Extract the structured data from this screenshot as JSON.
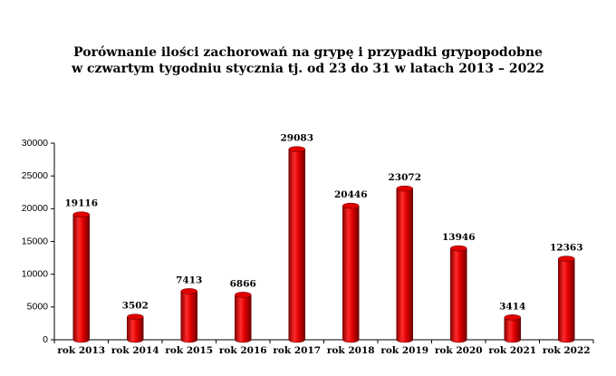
{
  "chart_data": {
    "type": "bar",
    "title_lines": [
      "Porównanie ilości zachorowań na grypę i przypadki grypopodobne",
      "w czwartym tygodniu stycznia tj. od 23 do 31 w latach 2013 – 2022"
    ],
    "categories": [
      "rok 2013",
      "rok 2014",
      "rok 2015",
      "rok 2016",
      "rok 2017",
      "rok 2018",
      "rok 2019",
      "rok 2020",
      "rok 2021",
      "rok 2022"
    ],
    "values": [
      19116,
      3502,
      7413,
      6866,
      29083,
      20446,
      23072,
      13946,
      3414,
      12363
    ],
    "color": "#e00000",
    "ylim": [
      0,
      30000
    ],
    "yticks": [
      0,
      5000,
      10000,
      15000,
      20000,
      25000,
      30000
    ],
    "grid": false
  }
}
